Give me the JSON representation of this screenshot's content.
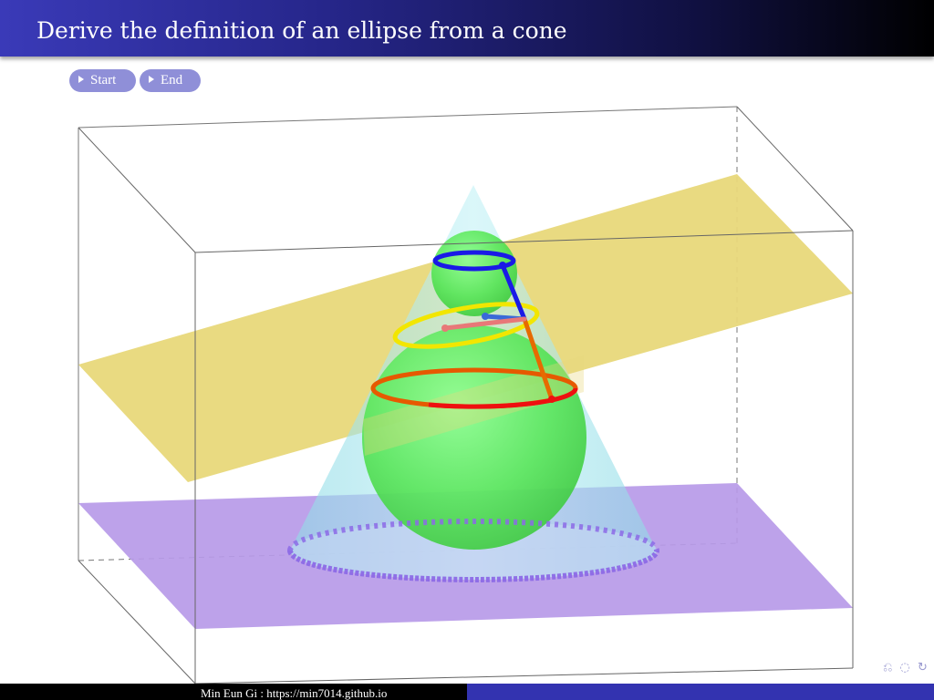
{
  "slide": {
    "title": "Derive the definition of an ellipse from a cone",
    "footer_author": "Min Eun Gi : https://min7014.github.io"
  },
  "controls": {
    "start_label": "Start",
    "end_label": "End"
  },
  "colors": {
    "title_bar_start": "#3a3ab8",
    "title_bar_end": "#000000",
    "button": "#8f8fd8",
    "cone": "#a8e6ec",
    "spheres": "#5ee65e",
    "cutting_plane": "#e8d87a",
    "base_plane": "#b79ae8",
    "upper_circle": "#1a1ae6",
    "lower_circle": "#e62a00",
    "ellipse": "#f2e600",
    "footer_left": "#000000",
    "footer_right": "#3333b0"
  },
  "icons": [
    "navigation-symbols-icon"
  ]
}
